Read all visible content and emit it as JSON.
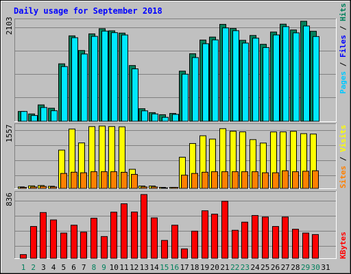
{
  "chart_data": [
    {
      "type": "bar",
      "title": "Daily usage for September 2018",
      "categories": [
        "1",
        "2",
        "3",
        "4",
        "5",
        "6",
        "7",
        "8",
        "9",
        "10",
        "11",
        "12",
        "13",
        "14",
        "15",
        "16",
        "17",
        "18",
        "19",
        "20",
        "21",
        "22",
        "23",
        "24",
        "25",
        "26",
        "27",
        "28",
        "29",
        "30",
        "31"
      ],
      "weekend_days": [
        "1",
        "2",
        "8",
        "9",
        "15",
        "16",
        "22",
        "23",
        "29",
        "30"
      ],
      "y_max_label": "2103",
      "ylim": [
        0,
        2103
      ],
      "legend": {
        "pages": "Pages",
        "files": "Files",
        "hits": "Hits",
        "sep": " / "
      },
      "series": [
        {
          "name": "Hits",
          "color": "#00805c",
          "values": [
            206,
            154,
            344,
            274,
            1208,
            1796,
            1488,
            1838,
            1946,
            1902,
            1854,
            1172,
            264,
            182,
            138,
            164,
            1054,
            1420,
            1708,
            1770,
            2037,
            1950,
            1702,
            1804,
            1618,
            1876,
            2042,
            1920,
            2103,
            1892,
            null
          ]
        },
        {
          "name": "Files",
          "color": "#00e8ff",
          "values": [
            206,
            121,
            289,
            221,
            1150,
            1757,
            1414,
            1785,
            1896,
            1863,
            1814,
            1102,
            219,
            154,
            83,
            145,
            990,
            1339,
            1630,
            1711,
            1963,
            1904,
            1644,
            1747,
            1550,
            1815,
            1989,
            1859,
            2003,
            1782,
            null
          ]
        }
      ]
    },
    {
      "type": "bar",
      "categories": [
        "1",
        "2",
        "3",
        "4",
        "5",
        "6",
        "7",
        "8",
        "9",
        "10",
        "11",
        "12",
        "13",
        "14",
        "15",
        "16",
        "17",
        "18",
        "19",
        "20",
        "21",
        "22",
        "23",
        "24",
        "25",
        "26",
        "27",
        "28",
        "29",
        "30",
        "31"
      ],
      "y_max_label": "1557",
      "ylim": [
        0,
        1557
      ],
      "legend": {
        "sites": "Sites",
        "visits": "Visits",
        "sep": " / "
      },
      "series": [
        {
          "name": "Visits",
          "color": "#ffff00",
          "values": [
            36,
            62,
            70,
            52,
            946,
            1467,
            1123,
            1526,
            1540,
            1527,
            1521,
            472,
            58,
            58,
            24,
            24,
            770,
            1109,
            1300,
            1218,
            1475,
            1413,
            1396,
            1204,
            1120,
            1394,
            1395,
            1410,
            1352,
            1342,
            null
          ]
        },
        {
          "name": "Sites",
          "color": "#ff8000",
          "values": [
            24,
            36,
            48,
            36,
            370,
            400,
            386,
            412,
            412,
            412,
            398,
            346,
            36,
            36,
            12,
            24,
            326,
            370,
            400,
            412,
            412,
            412,
            412,
            412,
            386,
            386,
            435,
            412,
            424,
            435,
            null
          ]
        }
      ]
    },
    {
      "type": "bar",
      "categories": [
        "1",
        "2",
        "3",
        "4",
        "5",
        "6",
        "7",
        "8",
        "9",
        "10",
        "11",
        "12",
        "13",
        "14",
        "15",
        "16",
        "17",
        "18",
        "19",
        "20",
        "21",
        "22",
        "23",
        "24",
        "25",
        "26",
        "27",
        "28",
        "29",
        "30",
        "31"
      ],
      "y_max_label": "836",
      "ylim": [
        0,
        836
      ],
      "legend": {
        "kbytes": "KBytes"
      },
      "series": [
        {
          "name": "KBytes",
          "color": "#ff0000",
          "values": [
            48,
            417,
            600,
            503,
            331,
            434,
            343,
            526,
            285,
            605,
            715,
            607,
            836,
            530,
            234,
            434,
            123,
            356,
            623,
            579,
            748,
            367,
            474,
            561,
            541,
            417,
            541,
            381,
            331,
            311,
            null
          ]
        }
      ]
    }
  ]
}
